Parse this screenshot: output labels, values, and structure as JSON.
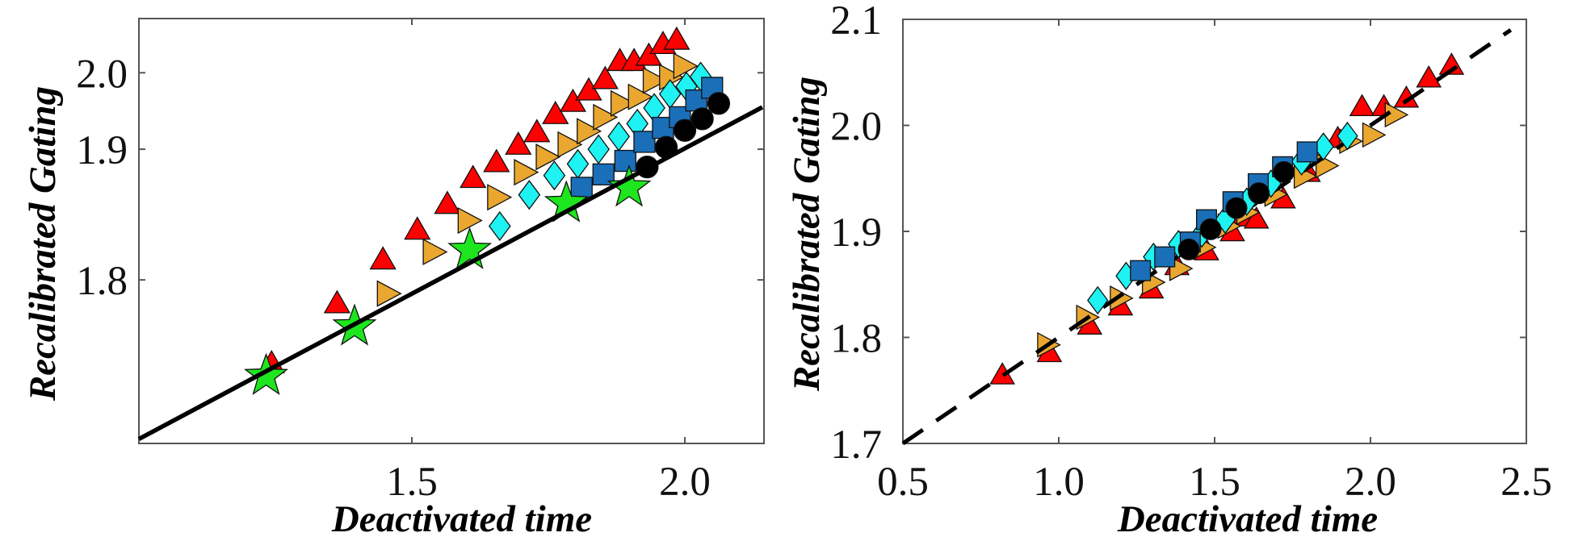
{
  "chart_data": [
    {
      "type": "scatter",
      "title": "",
      "xlabel": "Deactivated time",
      "ylabel": "Recalibrated Gating",
      "xlim": [
        1.0,
        2.145
      ],
      "ylim": [
        1.742,
        2.1
      ],
      "yscale": "log(y-1.7)",
      "grid": false,
      "legend": "none",
      "xticks": [
        {
          "value": 1.5,
          "label": "1.5"
        },
        {
          "value": 2.0,
          "label": "2.0"
        }
      ],
      "yticks": [
        {
          "value": 1.8,
          "label": "1.8"
        },
        {
          "value": 1.9,
          "label": "1.9"
        },
        {
          "value": 2.0,
          "label": "2.0"
        }
      ],
      "series": [
        {
          "marker": "triangle-up",
          "color": "#ff0000",
          "points": [
            [
              1.243,
              1.764
            ],
            [
              1.363,
              1.788
            ],
            [
              1.447,
              1.811
            ],
            [
              1.51,
              1.83
            ],
            [
              1.565,
              1.849
            ],
            [
              1.612,
              1.871
            ],
            [
              1.655,
              1.886
            ],
            [
              1.695,
              1.904
            ],
            [
              1.729,
              1.918
            ],
            [
              1.763,
              1.94
            ],
            [
              1.795,
              1.956
            ],
            [
              1.824,
              1.972
            ],
            [
              1.854,
              1.989
            ],
            [
              1.881,
              2.018
            ],
            [
              1.907,
              2.018
            ],
            [
              1.934,
              2.027
            ],
            [
              1.96,
              2.048
            ],
            [
              1.985,
              2.056
            ]
          ]
        },
        {
          "marker": "triangle-right",
          "color": "#e9a730",
          "points": [
            [
              1.454,
              1.793
            ],
            [
              1.538,
              1.816
            ],
            [
              1.602,
              1.837
            ],
            [
              1.656,
              1.855
            ],
            [
              1.705,
              1.877
            ],
            [
              1.745,
              1.892
            ],
            [
              1.785,
              1.905
            ],
            [
              1.82,
              1.92
            ],
            [
              1.85,
              1.937
            ],
            [
              1.882,
              1.955
            ],
            [
              1.914,
              1.964
            ],
            [
              1.941,
              1.988
            ],
            [
              1.971,
              1.993
            ],
            [
              1.997,
              2.011
            ]
          ]
        },
        {
          "marker": "diamond",
          "color": "#1ff2f2",
          "points": [
            [
              1.661,
              1.833
            ],
            [
              1.715,
              1.857
            ],
            [
              1.761,
              1.874
            ],
            [
              1.804,
              1.885
            ],
            [
              1.842,
              1.9
            ],
            [
              1.879,
              1.914
            ],
            [
              1.913,
              1.929
            ],
            [
              1.944,
              1.949
            ],
            [
              1.973,
              1.968
            ],
            [
              2.003,
              1.979
            ],
            [
              2.029,
              1.994
            ]
          ]
        },
        {
          "marker": "square",
          "color": "#1a6fb8",
          "points": [
            [
              1.811,
              1.863
            ],
            [
              1.851,
              1.875
            ],
            [
              1.891,
              1.888
            ],
            [
              1.926,
              1.908
            ],
            [
              1.96,
              1.924
            ],
            [
              1.991,
              1.937
            ],
            [
              2.021,
              1.959
            ],
            [
              2.05,
              1.977
            ]
          ]
        },
        {
          "marker": "circle",
          "color": "#000000",
          "points": [
            [
              1.931,
              1.882
            ],
            [
              1.966,
              1.902
            ],
            [
              2.0,
              1.921
            ],
            [
              2.032,
              1.935
            ],
            [
              2.062,
              1.955
            ]
          ]
        },
        {
          "marker": "star",
          "color": "#1ee61e",
          "points": [
            [
              1.233,
              1.76
            ],
            [
              1.395,
              1.778
            ],
            [
              1.606,
              1.817
            ],
            [
              1.783,
              1.85
            ],
            [
              1.898,
              1.863
            ]
          ]
        }
      ],
      "fit_line": {
        "style": "solid",
        "color": "#000000",
        "x": [
          1.0,
          2.142
        ],
        "y": [
          1.743,
          1.95
        ]
      }
    },
    {
      "type": "scatter",
      "title": "",
      "xlabel": "Deactivated time",
      "ylabel": "Recalibrated Gating",
      "xlim": [
        0.5,
        2.5
      ],
      "ylim": [
        1.7,
        2.1
      ],
      "yscale": "linear",
      "grid": false,
      "legend": "none",
      "xticks": [
        {
          "value": 0.5,
          "label": "0.5"
        },
        {
          "value": 1.0,
          "label": "1.0"
        },
        {
          "value": 1.5,
          "label": "1.5"
        },
        {
          "value": 2.0,
          "label": "2.0"
        },
        {
          "value": 2.5,
          "label": "2.5"
        }
      ],
      "yticks": [
        {
          "value": 1.7,
          "label": "1.7"
        },
        {
          "value": 1.8,
          "label": "1.8"
        },
        {
          "value": 1.9,
          "label": "1.9"
        },
        {
          "value": 2.0,
          "label": "2.0"
        },
        {
          "value": 2.1,
          "label": "2.1"
        }
      ],
      "series": [
        {
          "marker": "triangle-up",
          "color": "#ff0000",
          "points": [
            [
              0.819,
              1.764
            ],
            [
              0.97,
              1.785
            ],
            [
              1.099,
              1.811
            ],
            [
              1.198,
              1.829
            ],
            [
              1.297,
              1.845
            ],
            [
              1.379,
              1.867
            ],
            [
              1.474,
              1.881
            ],
            [
              1.557,
              1.899
            ],
            [
              1.59,
              1.913
            ],
            [
              1.634,
              1.911
            ],
            [
              1.72,
              1.93
            ],
            [
              1.8,
              1.955
            ],
            [
              1.895,
              1.987
            ],
            [
              1.973,
              2.017
            ],
            [
              2.043,
              2.017
            ],
            [
              2.115,
              2.025
            ],
            [
              2.187,
              2.044
            ],
            [
              2.26,
              2.056
            ]
          ]
        },
        {
          "marker": "triangle-right",
          "color": "#e9a730",
          "points": [
            [
              0.961,
              1.793
            ],
            [
              1.086,
              1.819
            ],
            [
              1.194,
              1.837
            ],
            [
              1.297,
              1.852
            ],
            [
              1.385,
              1.865
            ],
            [
              1.46,
              1.885
            ],
            [
              1.54,
              1.905
            ],
            [
              1.6,
              1.918
            ],
            [
              1.69,
              1.935
            ],
            [
              1.784,
              1.952
            ],
            [
              1.854,
              1.962
            ],
            [
              1.93,
              1.985
            ],
            [
              2.004,
              1.991
            ],
            [
              2.076,
              2.01
            ]
          ]
        },
        {
          "marker": "diamond",
          "color": "#1ff2f2",
          "points": [
            [
              1.125,
              1.835
            ],
            [
              1.216,
              1.858
            ],
            [
              1.304,
              1.876
            ],
            [
              1.384,
              1.888
            ],
            [
              1.459,
              1.898
            ],
            [
              1.534,
              1.911
            ],
            [
              1.603,
              1.928
            ],
            [
              1.681,
              1.945
            ],
            [
              1.779,
              1.966
            ],
            [
              1.849,
              1.98
            ],
            [
              1.926,
              1.99
            ]
          ]
        },
        {
          "marker": "square",
          "color": "#1a6fb8",
          "points": [
            [
              1.262,
              1.863
            ],
            [
              1.34,
              1.876
            ],
            [
              1.422,
              1.89
            ],
            [
              1.474,
              1.911
            ],
            [
              1.559,
              1.928
            ],
            [
              1.64,
              1.945
            ],
            [
              1.718,
              1.961
            ],
            [
              1.797,
              1.975
            ]
          ]
        },
        {
          "marker": "circle",
          "color": "#000000",
          "points": [
            [
              1.417,
              1.883
            ],
            [
              1.487,
              1.902
            ],
            [
              1.57,
              1.922
            ],
            [
              1.642,
              1.936
            ],
            [
              1.722,
              1.956
            ]
          ]
        }
      ],
      "fit_line": {
        "style": "dashed",
        "color": "#000000",
        "x": [
          0.5,
          2.45
        ],
        "y": [
          1.7,
          2.09
        ]
      }
    }
  ]
}
